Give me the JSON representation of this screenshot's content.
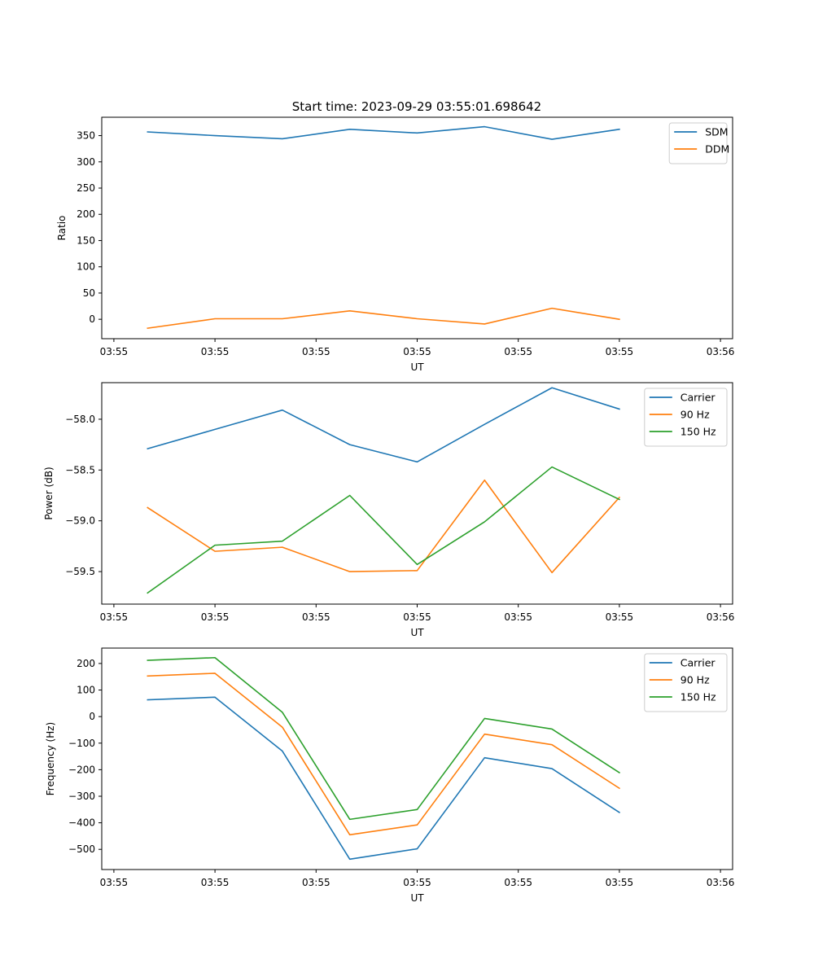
{
  "figure_title": "Start time: 2023-09-29 03:55:01.698642",
  "colors": {
    "c0": "#1f77b4",
    "c1": "#ff7f0e",
    "c2": "#2ca02c"
  },
  "chart_data": [
    {
      "type": "line",
      "title": "Start time: 2023-09-29 03:55:01.698642",
      "xlabel": "UT",
      "ylabel": "Ratio",
      "x": [
        0.5,
        1.5,
        2.5,
        3.5,
        4.5,
        5.5,
        6.5,
        7.5
      ],
      "xlim": [
        -0.18,
        9.18
      ],
      "xticks": [
        0,
        1.5,
        3,
        4.5,
        6,
        7.5,
        9
      ],
      "xtick_labels": [
        "03:55",
        "03:55",
        "03:55",
        "03:55",
        "03:55",
        "03:55",
        "03:56"
      ],
      "ylim": [
        -37,
        385
      ],
      "yticks": [
        0,
        50,
        100,
        150,
        200,
        250,
        300,
        350
      ],
      "ytick_labels": [
        "0",
        "50",
        "100",
        "150",
        "200",
        "250",
        "300",
        "350"
      ],
      "legend_position": "top-right",
      "series": [
        {
          "name": "SDM",
          "color": "#1f77b4",
          "values": [
            357,
            350,
            344,
            362,
            355,
            367,
            343,
            362
          ]
        },
        {
          "name": "DDM",
          "color": "#ff7f0e",
          "values": [
            -17,
            1,
            1,
            16,
            1,
            -9,
            21,
            0
          ]
        }
      ]
    },
    {
      "type": "line",
      "title": "",
      "xlabel": "UT",
      "ylabel": "Power (dB)",
      "x": [
        0.5,
        1.5,
        2.5,
        3.5,
        4.5,
        5.5,
        6.5,
        7.5
      ],
      "xlim": [
        -0.18,
        9.18
      ],
      "xticks": [
        0,
        1.5,
        3,
        4.5,
        6,
        7.5,
        9
      ],
      "xtick_labels": [
        "03:55",
        "03:55",
        "03:55",
        "03:55",
        "03:55",
        "03:55",
        "03:56"
      ],
      "ylim": [
        -59.82,
        -57.64
      ],
      "yticks": [
        -59.5,
        -59.0,
        -58.5,
        -58.0
      ],
      "ytick_labels": [
        "−59.5",
        "−59.0",
        "−58.5",
        "−58.0"
      ],
      "legend_position": "top-right",
      "series": [
        {
          "name": "Carrier",
          "color": "#1f77b4",
          "values": [
            -58.29,
            -58.1,
            -57.91,
            -58.25,
            -58.42,
            -58.05,
            -57.69,
            -57.9
          ]
        },
        {
          "name": "90 Hz",
          "color": "#ff7f0e",
          "values": [
            -58.87,
            -59.3,
            -59.26,
            -59.5,
            -59.49,
            -58.6,
            -59.51,
            -58.77
          ]
        },
        {
          "name": "150 Hz",
          "color": "#2ca02c",
          "values": [
            -59.71,
            -59.24,
            -59.2,
            -58.75,
            -59.43,
            -59.01,
            -58.47,
            -58.79
          ]
        }
      ]
    },
    {
      "type": "line",
      "title": "",
      "xlabel": "UT",
      "ylabel": "Frequency (Hz)",
      "x": [
        0.5,
        1.5,
        2.5,
        3.5,
        4.5,
        5.5,
        6.5,
        7.5
      ],
      "xlim": [
        -0.18,
        9.18
      ],
      "xticks": [
        0,
        1.5,
        3,
        4.5,
        6,
        7.5,
        9
      ],
      "xtick_labels": [
        "03:55",
        "03:55",
        "03:55",
        "03:55",
        "03:55",
        "03:55",
        "03:56"
      ],
      "ylim": [
        -576,
        258
      ],
      "yticks": [
        -500,
        -400,
        -300,
        -200,
        -100,
        0,
        100,
        200
      ],
      "ytick_labels": [
        "−500",
        "−400",
        "−300",
        "−200",
        "−100",
        "0",
        "100",
        "200"
      ],
      "legend_position": "top-right",
      "series": [
        {
          "name": "Carrier",
          "color": "#1f77b4",
          "values": [
            63,
            73,
            -130,
            -537,
            -498,
            -155,
            -196,
            -361
          ]
        },
        {
          "name": "90 Hz",
          "color": "#ff7f0e",
          "values": [
            153,
            163,
            -40,
            -445,
            -408,
            -66,
            -106,
            -270
          ]
        },
        {
          "name": "150 Hz",
          "color": "#2ca02c",
          "values": [
            212,
            222,
            16,
            -387,
            -350,
            -7,
            -47,
            -211
          ]
        }
      ]
    }
  ]
}
